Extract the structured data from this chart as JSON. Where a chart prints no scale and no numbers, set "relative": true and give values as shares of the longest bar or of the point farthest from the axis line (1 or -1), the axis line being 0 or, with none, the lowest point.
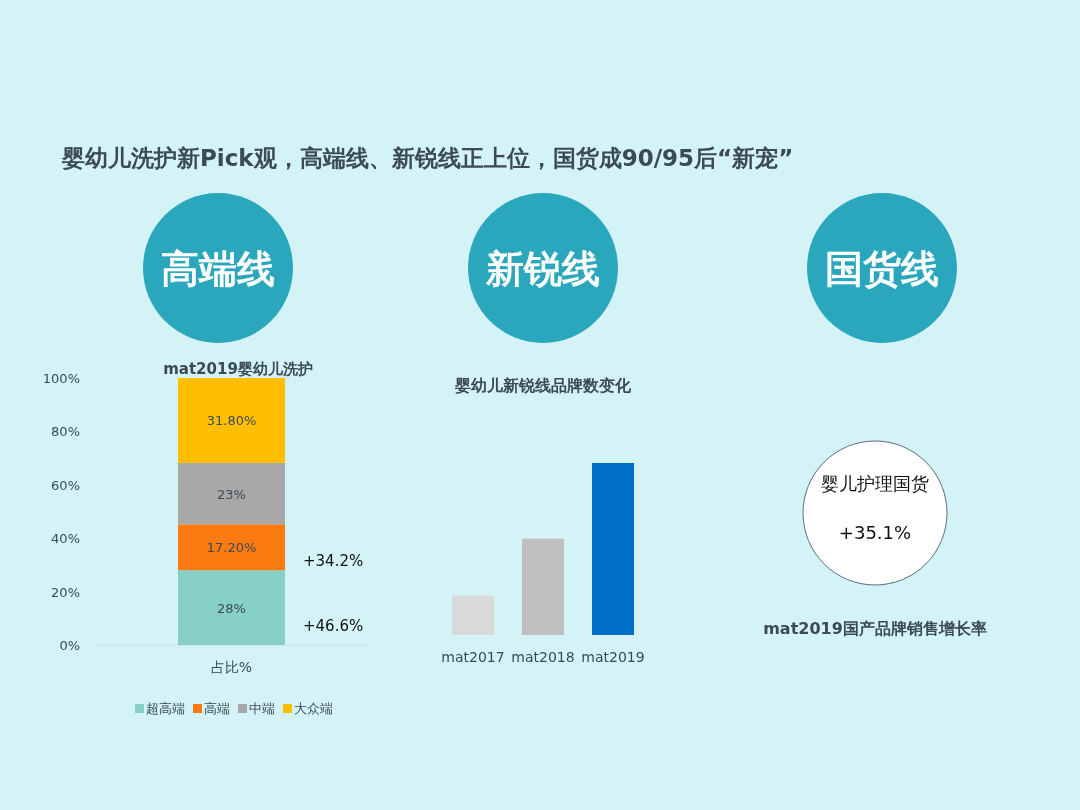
{
  "chart_data": [
    {
      "type": "other",
      "title": "婴幼儿洗护新Pick观，高端线、新锐线正上位，国货成90/95后“新宠”"
    },
    {
      "type": "bar",
      "title": "高端线",
      "subtitle": "mat2019婴幼儿洗护",
      "categories": [
        "占比%"
      ],
      "stacked": true,
      "legend": "bottom",
      "series": [
        {
          "name": "超高端",
          "color": "#86d0c8",
          "values": [
            28
          ],
          "value_labels": [
            "28%"
          ]
        },
        {
          "name": "高端",
          "color": "#fb7a12",
          "values": [
            17.2
          ],
          "value_labels": [
            "17.20%"
          ]
        },
        {
          "name": "中端",
          "color": "#a8a8a8",
          "values": [
            23
          ],
          "value_labels": [
            "23%"
          ]
        },
        {
          "name": "大众端",
          "color": "#ffbf00",
          "values": [
            31.8
          ],
          "value_labels": [
            "31.80%"
          ]
        }
      ],
      "ylim": [
        0,
        100
      ],
      "yticks": [
        {
          "value": 0,
          "label": "0%"
        },
        {
          "value": 20,
          "label": "20%"
        },
        {
          "value": 40,
          "label": "40%"
        },
        {
          "value": 60,
          "label": "60%"
        },
        {
          "value": 80,
          "label": "80%"
        },
        {
          "value": 100,
          "label": "100%"
        }
      ],
      "annotations": [
        "+34.2%",
        "+46.6%"
      ]
    },
    {
      "type": "bar",
      "title": "新锐线",
      "subtitle": "婴幼儿新锐线品牌数变化",
      "relative": true,
      "categories": [
        "mat2017",
        "mat2018",
        "mat2019"
      ],
      "values": [
        0.23,
        0.56,
        1
      ],
      "colors": [
        "#d9d9d9",
        "#bfbfbf",
        "#0070c6"
      ]
    },
    {
      "type": "other",
      "title": "国货线",
      "annotations": [
        "婴儿护理国货",
        "+35.1%",
        "mat2019国产品牌销售增长率"
      ]
    }
  ]
}
